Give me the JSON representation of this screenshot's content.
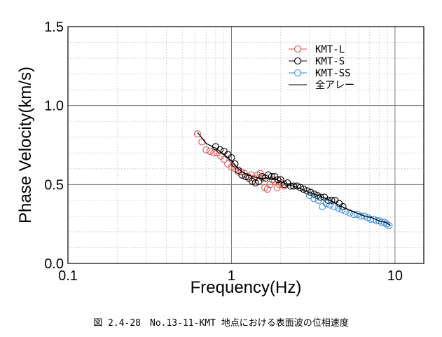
{
  "caption": "図 2.4-28　No.13-11-KMT 地点における表面波の位相速度",
  "chart_data": {
    "type": "scatter",
    "title": "",
    "xlabel": "Frequency(Hz)",
    "ylabel": "Phase Velocity(km/s)",
    "xscale": "log",
    "xlim": [
      0.1,
      15
    ],
    "ylim": [
      0.0,
      1.5
    ],
    "xticks": [
      0.1,
      1,
      10
    ],
    "xtick_labels": [
      "0.1",
      "1",
      "10"
    ],
    "yticks": [
      0.0,
      0.5,
      1.0,
      1.5
    ],
    "ytick_labels": [
      "0.0",
      "0.5",
      "1.0",
      "1.5"
    ],
    "grid": true,
    "legend_position": "top-right",
    "series": [
      {
        "name": "KMT-L",
        "color": "#d9534f",
        "marker": "circle-open",
        "x": [
          0.62,
          0.66,
          0.7,
          0.74,
          0.78,
          0.82,
          0.86,
          0.9,
          0.95,
          1.0,
          1.05,
          1.1,
          1.15,
          1.2,
          1.26,
          1.32,
          1.38,
          1.44,
          1.5,
          1.55,
          1.6,
          1.66,
          1.72,
          1.78,
          1.84,
          1.9,
          1.96,
          2.02,
          2.1
        ],
        "y": [
          0.82,
          0.77,
          0.72,
          0.71,
          0.7,
          0.7,
          0.68,
          0.66,
          0.63,
          0.61,
          0.6,
          0.58,
          0.58,
          0.57,
          0.55,
          0.56,
          0.54,
          0.56,
          0.57,
          0.54,
          0.48,
          0.47,
          0.5,
          0.53,
          0.52,
          0.48,
          0.5,
          0.51,
          0.49
        ]
      },
      {
        "name": "KMT-S",
        "color": "#000000",
        "marker": "circle-open",
        "x": [
          0.8,
          0.85,
          0.9,
          0.95,
          1.0,
          1.05,
          1.1,
          1.16,
          1.22,
          1.28,
          1.34,
          1.4,
          1.47,
          1.54,
          1.61,
          1.68,
          1.76,
          1.84,
          1.92,
          2.0,
          2.1,
          2.2,
          2.3,
          2.4,
          2.52,
          2.64,
          2.76,
          2.9,
          3.05,
          3.2,
          3.35,
          3.5,
          3.7,
          3.9,
          4.1,
          4.3,
          4.55,
          4.8
        ],
        "y": [
          0.74,
          0.72,
          0.71,
          0.69,
          0.67,
          0.63,
          0.59,
          0.56,
          0.55,
          0.54,
          0.52,
          0.51,
          0.52,
          0.55,
          0.54,
          0.56,
          0.55,
          0.55,
          0.53,
          0.53,
          0.5,
          0.51,
          0.49,
          0.49,
          0.49,
          0.48,
          0.47,
          0.46,
          0.45,
          0.44,
          0.43,
          0.42,
          0.42,
          0.4,
          0.4,
          0.4,
          0.38,
          0.36
        ]
      },
      {
        "name": "KMT-SS",
        "color": "#3a8fd9",
        "marker": "circle-open",
        "x": [
          3.0,
          3.2,
          3.4,
          3.6,
          3.8,
          4.0,
          4.25,
          4.5,
          4.75,
          5.0,
          5.3,
          5.6,
          5.9,
          6.2,
          6.5,
          6.8,
          7.1,
          7.4,
          7.7,
          8.0,
          8.3,
          8.6,
          8.9,
          9.2
        ],
        "y": [
          0.43,
          0.41,
          0.4,
          0.36,
          0.38,
          0.37,
          0.36,
          0.35,
          0.34,
          0.33,
          0.32,
          0.31,
          0.31,
          0.3,
          0.3,
          0.29,
          0.28,
          0.28,
          0.27,
          0.27,
          0.26,
          0.26,
          0.25,
          0.24
        ]
      },
      {
        "name": "全アレー",
        "color": "#000000",
        "marker": "line",
        "x": [
          0.62,
          0.7,
          0.8,
          0.9,
          1.0,
          1.1,
          1.2,
          1.35,
          1.5,
          1.65,
          1.8,
          2.0,
          2.2,
          2.4,
          2.7,
          3.0,
          3.4,
          3.8,
          4.2,
          4.7,
          5.2,
          5.8,
          6.5,
          7.2,
          8.0,
          8.8,
          9.4
        ],
        "y": [
          0.83,
          0.76,
          0.73,
          0.69,
          0.65,
          0.6,
          0.57,
          0.55,
          0.54,
          0.54,
          0.54,
          0.52,
          0.5,
          0.49,
          0.47,
          0.45,
          0.43,
          0.41,
          0.39,
          0.36,
          0.34,
          0.32,
          0.3,
          0.29,
          0.27,
          0.26,
          0.24
        ]
      }
    ]
  }
}
